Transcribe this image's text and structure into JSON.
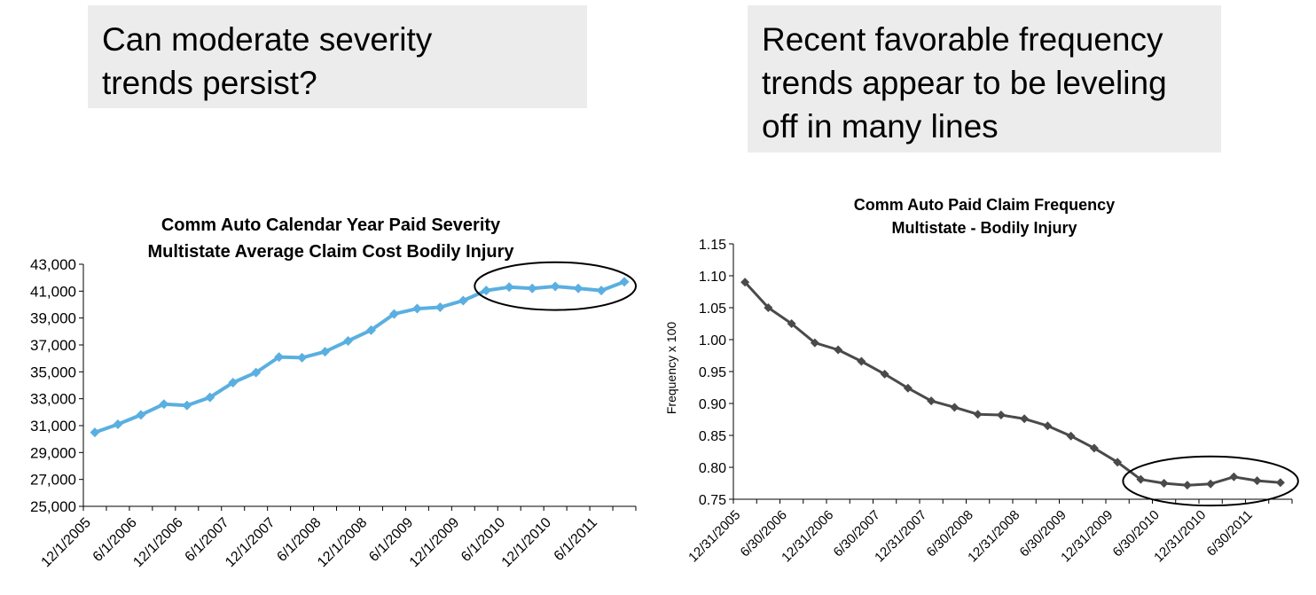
{
  "callouts": {
    "left": [
      "Can moderate severity",
      "trends persist?"
    ],
    "right": [
      "Recent favorable frequency",
      "trends appear to be leveling",
      "off in many lines"
    ]
  },
  "colors": {
    "severity_line": "#5aafe0",
    "frequency_line": "#4a4a4a",
    "callout_bg": "#ececec"
  },
  "chart_data": [
    {
      "type": "line",
      "title": [
        "Comm Auto Calendar Year Paid Severity",
        "Multistate Average Claim Cost Bodily Injury"
      ],
      "xlabel": "",
      "ylabel": "",
      "ylim": [
        25000,
        43000
      ],
      "yticks": [
        "25,000",
        "27,000",
        "29,000",
        "31,000",
        "33,000",
        "35,000",
        "37,000",
        "39,000",
        "41,000",
        "43,000"
      ],
      "x_tick_labels": [
        "12/1/2005",
        "6/1/2006",
        "12/1/2006",
        "6/1/2007",
        "12/1/2007",
        "6/1/2008",
        "12/1/2008",
        "6/1/2009",
        "12/1/2009",
        "6/1/2010",
        "12/1/2010",
        "6/1/2011"
      ],
      "grid": false,
      "annotation": "ellipse around final seven points",
      "series": [
        {
          "values": [
            30500,
            31100,
            31800,
            32600,
            32500,
            33100,
            34200,
            34950,
            36100,
            36050,
            36500,
            37300,
            38100,
            39300,
            39700,
            39800,
            40300,
            41050,
            41300,
            41200,
            41350,
            41200,
            41050,
            41700
          ]
        }
      ]
    },
    {
      "type": "line",
      "title": [
        "Comm Auto Paid Claim Frequency",
        "Multistate - Bodily Injury"
      ],
      "xlabel": "",
      "ylabel": "Frequency x 100",
      "ylim": [
        0.75,
        1.15
      ],
      "yticks": [
        "0.75",
        "0.80",
        "0.85",
        "0.90",
        "0.95",
        "1.00",
        "1.05",
        "1.10",
        "1.15"
      ],
      "x_tick_labels": [
        "12/31/2005",
        "6/30/2006",
        "12/31/2006",
        "6/30/2007",
        "12/31/2007",
        "6/30/2008",
        "12/31/2008",
        "6/30/2009",
        "12/31/2009",
        "6/30/2010",
        "12/31/2010",
        "6/30/2011"
      ],
      "grid": false,
      "annotation": "ellipse around final seven points",
      "series": [
        {
          "values": [
            1.09,
            1.05,
            1.025,
            0.995,
            0.984,
            0.966,
            0.946,
            0.924,
            0.904,
            0.894,
            0.883,
            0.882,
            0.876,
            0.865,
            0.849,
            0.83,
            0.808,
            0.781,
            0.775,
            0.772,
            0.774,
            0.785,
            0.779,
            0.776
          ]
        }
      ]
    }
  ]
}
